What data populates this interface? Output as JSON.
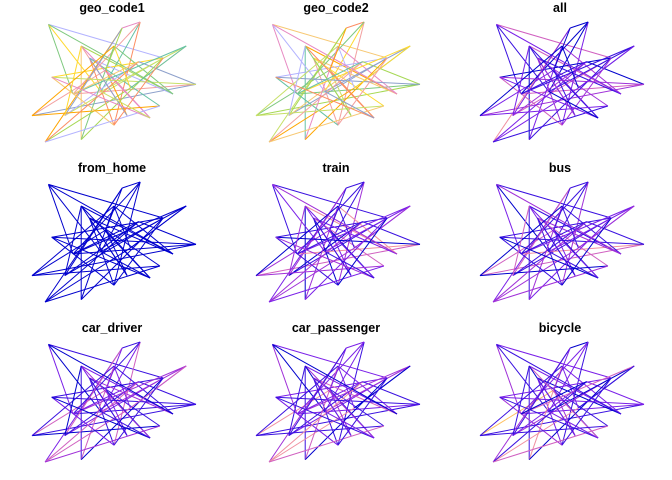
{
  "chart_data": {
    "type": "map-lines",
    "description": "",
    "panels": [
      {
        "title": "geo_code1",
        "palette": "categorical"
      },
      {
        "title": "geo_code2",
        "palette": "categorical"
      },
      {
        "title": "all",
        "palette": "sequential"
      },
      {
        "title": "from_home",
        "palette": "sequential"
      },
      {
        "title": "train",
        "palette": "sequential"
      },
      {
        "title": "bus",
        "palette": "sequential"
      },
      {
        "title": "car_driver",
        "palette": "sequential"
      },
      {
        "title": "car_passenger",
        "palette": "sequential"
      },
      {
        "title": "bicycle",
        "palette": "sequential"
      }
    ],
    "nodes": [
      [
        0.0,
        0.78
      ],
      [
        0.1,
        0.02
      ],
      [
        0.3,
        0.2
      ],
      [
        0.55,
        0.05
      ],
      [
        0.66,
        0.0
      ],
      [
        0.8,
        0.3
      ],
      [
        1.0,
        0.52
      ],
      [
        0.86,
        0.6
      ],
      [
        0.6,
        0.55
      ],
      [
        0.45,
        0.4
      ],
      [
        0.35,
        0.3
      ],
      [
        0.42,
        0.58
      ],
      [
        0.25,
        0.6
      ],
      [
        0.2,
        0.78
      ],
      [
        0.08,
        1.0
      ],
      [
        0.3,
        0.98
      ],
      [
        0.5,
        0.86
      ],
      [
        0.72,
        0.8
      ],
      [
        0.78,
        0.7
      ],
      [
        0.94,
        0.2
      ],
      [
        0.65,
        0.33
      ],
      [
        0.12,
        0.46
      ],
      [
        0.5,
        0.2
      ],
      [
        0.58,
        0.78
      ]
    ],
    "flows": [
      [
        0,
        9,
        0.9
      ],
      [
        0,
        6,
        0.7
      ],
      [
        1,
        5,
        0.6
      ],
      [
        1,
        12,
        0.5
      ],
      [
        2,
        7,
        0.8
      ],
      [
        2,
        15,
        0.4
      ],
      [
        3,
        4,
        0.3
      ],
      [
        3,
        14,
        0.9
      ],
      [
        4,
        11,
        0.5
      ],
      [
        4,
        16,
        0.6
      ],
      [
        5,
        13,
        0.7
      ],
      [
        5,
        21,
        0.4
      ],
      [
        6,
        12,
        0.8
      ],
      [
        6,
        20,
        0.5
      ],
      [
        7,
        10,
        0.6
      ],
      [
        7,
        22,
        0.7
      ],
      [
        8,
        14,
        0.9
      ],
      [
        8,
        19,
        0.5
      ],
      [
        9,
        17,
        0.4
      ],
      [
        9,
        23,
        0.6
      ],
      [
        10,
        18,
        0.7
      ],
      [
        10,
        16,
        0.5
      ],
      [
        11,
        19,
        0.6
      ],
      [
        11,
        1,
        0.4
      ],
      [
        12,
        4,
        0.5
      ],
      [
        13,
        3,
        0.7
      ],
      [
        13,
        20,
        0.6
      ],
      [
        15,
        22,
        0.8
      ],
      [
        15,
        5,
        0.4
      ],
      [
        16,
        21,
        0.7
      ],
      [
        17,
        2,
        0.6
      ],
      [
        18,
        0,
        0.5
      ],
      [
        19,
        12,
        0.8
      ],
      [
        20,
        14,
        0.7
      ],
      [
        21,
        6,
        0.6
      ],
      [
        22,
        8,
        0.5
      ],
      [
        23,
        2,
        0.4
      ],
      [
        23,
        10,
        0.6
      ],
      [
        14,
        18,
        0.7
      ],
      [
        1,
        7,
        0.5
      ],
      [
        3,
        9,
        0.6
      ],
      [
        12,
        20,
        0.4
      ],
      [
        17,
        21,
        0.5
      ],
      [
        0,
        22,
        0.3
      ],
      [
        19,
        8,
        0.6
      ],
      [
        16,
        5,
        0.5
      ],
      [
        11,
        17,
        0.4
      ],
      [
        2,
        13,
        0.6
      ]
    ]
  },
  "colors": {
    "categorical": [
      "#f3a0a0",
      "#f7c873",
      "#c7e068",
      "#7fc97f",
      "#66c2a5",
      "#8da0cb",
      "#e78ac3",
      "#ffd92f",
      "#a6d854",
      "#fc8d62",
      "#b3b3ff",
      "#ffa500"
    ],
    "sequential": [
      "#0000cd",
      "#3a10e0",
      "#7a1fe8",
      "#a030d8",
      "#d060c0",
      "#f090a0",
      "#ffc060",
      "#ffff33"
    ]
  }
}
